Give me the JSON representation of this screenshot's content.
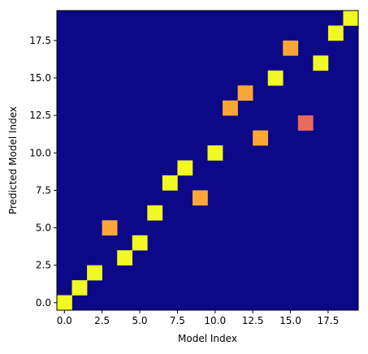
{
  "chart_data": {
    "type": "heatmap",
    "xlabel": "Model Index",
    "ylabel": "Predicted Model Index",
    "xlim": [
      -0.5,
      19.5
    ],
    "ylim": [
      -0.5,
      19.5
    ],
    "x_ticks": [
      {
        "value": 0,
        "label": "0.0"
      },
      {
        "value": 2.5,
        "label": "2.5"
      },
      {
        "value": 5,
        "label": "5.0"
      },
      {
        "value": 7.5,
        "label": "7.5"
      },
      {
        "value": 10,
        "label": "10.0"
      },
      {
        "value": 12.5,
        "label": "12.5"
      },
      {
        "value": 15,
        "label": "15.0"
      },
      {
        "value": 17.5,
        "label": "17.5"
      }
    ],
    "y_ticks": [
      {
        "value": 0,
        "label": "0.0"
      },
      {
        "value": 2.5,
        "label": "2.5"
      },
      {
        "value": 5,
        "label": "5.0"
      },
      {
        "value": 7.5,
        "label": "7.5"
      },
      {
        "value": 10,
        "label": "10.0"
      },
      {
        "value": 12.5,
        "label": "12.5"
      },
      {
        "value": 15,
        "label": "15.0"
      },
      {
        "value": 17.5,
        "label": "17.5"
      }
    ],
    "colormap": "plasma",
    "background_color": "#0d0887",
    "grid": false,
    "cells": [
      {
        "x": 0,
        "y": 0,
        "color": "#f0f921"
      },
      {
        "x": 1,
        "y": 1,
        "color": "#f0f921"
      },
      {
        "x": 2,
        "y": 2,
        "color": "#f0f921"
      },
      {
        "x": 3,
        "y": 5,
        "color": "#fca636"
      },
      {
        "x": 4,
        "y": 3,
        "color": "#f0f921"
      },
      {
        "x": 5,
        "y": 4,
        "color": "#f0f921"
      },
      {
        "x": 6,
        "y": 6,
        "color": "#f0f921"
      },
      {
        "x": 7,
        "y": 8,
        "color": "#f0f921"
      },
      {
        "x": 8,
        "y": 9,
        "color": "#f0f921"
      },
      {
        "x": 9,
        "y": 7,
        "color": "#fca636"
      },
      {
        "x": 10,
        "y": 10,
        "color": "#f0f921"
      },
      {
        "x": 11,
        "y": 13,
        "color": "#fca636"
      },
      {
        "x": 12,
        "y": 14,
        "color": "#fca636"
      },
      {
        "x": 13,
        "y": 11,
        "color": "#fca636"
      },
      {
        "x": 14,
        "y": 15,
        "color": "#f0f921"
      },
      {
        "x": 15,
        "y": 17,
        "color": "#fca636"
      },
      {
        "x": 16,
        "y": 12,
        "color": "#e66c5c"
      },
      {
        "x": 17,
        "y": 16,
        "color": "#f0f921"
      },
      {
        "x": 18,
        "y": 18,
        "color": "#f0f921"
      },
      {
        "x": 19,
        "y": 19,
        "color": "#f0f921"
      }
    ]
  }
}
